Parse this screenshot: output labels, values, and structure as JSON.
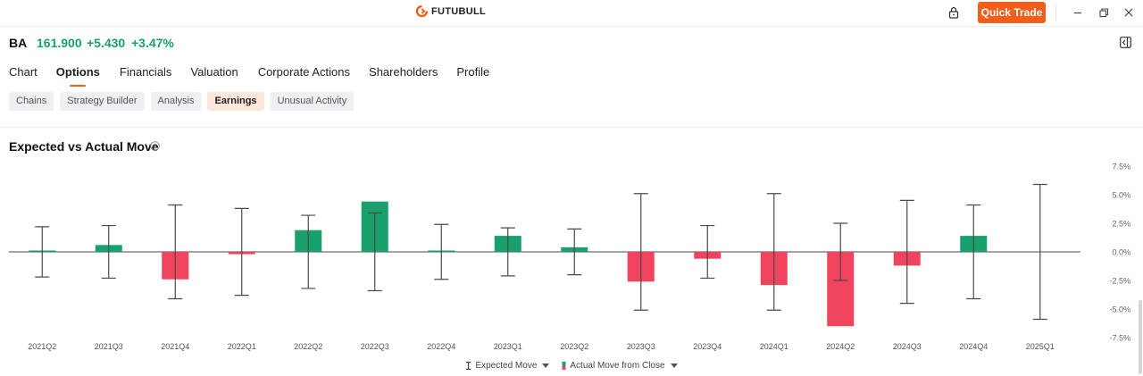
{
  "app": {
    "logo_text": "FUTUBULL",
    "quick_trade_label": "Quick Trade"
  },
  "quote": {
    "symbol": "BA",
    "price": "161.900",
    "change": "+5.430",
    "change_pct": "+3.47%",
    "color": "#1aa06d"
  },
  "tabs": [
    {
      "label": "Chart",
      "active": false
    },
    {
      "label": "Options",
      "active": true
    },
    {
      "label": "Financials",
      "active": false
    },
    {
      "label": "Valuation",
      "active": false
    },
    {
      "label": "Corporate Actions",
      "active": false
    },
    {
      "label": "Shareholders",
      "active": false
    },
    {
      "label": "Profile",
      "active": false
    }
  ],
  "subtabs": [
    {
      "label": "Chains",
      "active": false
    },
    {
      "label": "Strategy Builder",
      "active": false
    },
    {
      "label": "Analysis",
      "active": false
    },
    {
      "label": "Earnings",
      "active": true
    },
    {
      "label": "Unusual Activity",
      "active": false
    }
  ],
  "section": {
    "title": "Expected vs Actual Move"
  },
  "legend": {
    "expected_label": "Expected Move",
    "actual_label": "Actual Move from Close"
  },
  "colors": {
    "accent": "#f25f1d",
    "up": "#1aa06d",
    "down": "#f0445e",
    "whisker": "#4a4a4a"
  },
  "chart_data": {
    "type": "bar",
    "categories": [
      "2021Q2",
      "2021Q3",
      "2021Q4",
      "2022Q1",
      "2022Q2",
      "2022Q3",
      "2022Q4",
      "2023Q1",
      "2023Q2",
      "2023Q3",
      "2023Q4",
      "2024Q1",
      "2024Q2",
      "2024Q3",
      "2024Q4",
      "2025Q1"
    ],
    "series": [
      {
        "name": "Expected Move",
        "values": [
          2.2,
          2.3,
          4.1,
          3.8,
          3.2,
          3.4,
          2.4,
          2.1,
          2.0,
          5.1,
          2.3,
          5.1,
          2.5,
          4.5,
          4.1,
          5.9
        ]
      },
      {
        "name": "Actual Move from Close",
        "values": [
          0.1,
          0.6,
          -2.4,
          -0.2,
          1.9,
          4.4,
          0.1,
          1.4,
          0.4,
          -2.6,
          -0.6,
          -2.9,
          -6.5,
          -1.2,
          1.4,
          null
        ]
      }
    ],
    "ylim": [
      -7.5,
      7.5
    ],
    "yticks": [
      "7.5%",
      "5.0%",
      "2.5%",
      "0.0%",
      "-2.5%",
      "-5.0%",
      "-7.5%"
    ],
    "ytick_values": [
      7.5,
      5.0,
      2.5,
      0.0,
      -2.5,
      -5.0,
      -7.5
    ],
    "grid": false,
    "legend_position": "bottom-center"
  }
}
